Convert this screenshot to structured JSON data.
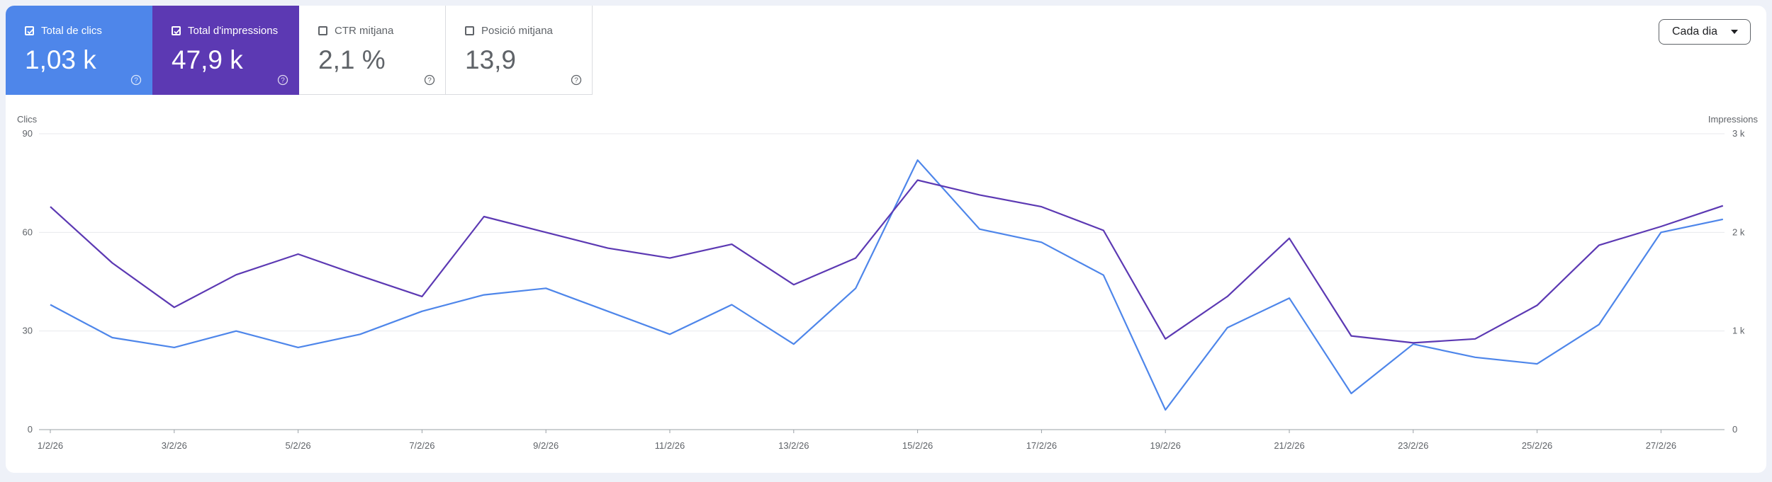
{
  "metrics": [
    {
      "label": "Total de clics",
      "value": "1,03 k",
      "checked": true,
      "color": "#4e86ea"
    },
    {
      "label": "Total d'impressions",
      "value": "47,9 k",
      "checked": true,
      "color": "#5c39b3"
    },
    {
      "label": "CTR mitjana",
      "value": "2,1 %",
      "checked": false
    },
    {
      "label": "Posició mitjana",
      "value": "13,9",
      "checked": false
    }
  ],
  "range_selector": {
    "label": "Cada dia",
    "icon": "caret-down-icon"
  },
  "chart_data": {
    "type": "line",
    "left_axis": {
      "title": "Clics",
      "ticks": [
        "0",
        "30",
        "60",
        "90"
      ],
      "min": 0,
      "max": 90
    },
    "right_axis": {
      "title": "Impressions",
      "ticks": [
        "0",
        "1 k",
        "2 k",
        "3 k"
      ],
      "min": 0,
      "max": 3000
    },
    "x_tick_labels": [
      "1/2/26",
      "3/2/26",
      "5/2/26",
      "7/2/26",
      "9/2/26",
      "11/2/26",
      "13/2/26",
      "15/2/26",
      "17/2/26",
      "19/2/26",
      "21/2/26",
      "23/2/26",
      "25/2/26",
      "27/2/26"
    ],
    "x": [
      "1/2/26",
      "2/2/26",
      "3/2/26",
      "4/2/26",
      "5/2/26",
      "6/2/26",
      "7/2/26",
      "8/2/26",
      "9/2/26",
      "10/2/26",
      "11/2/26",
      "12/2/26",
      "13/2/26",
      "14/2/26",
      "15/2/26",
      "16/2/26",
      "17/2/26",
      "18/2/26",
      "19/2/26",
      "20/2/26",
      "21/2/26",
      "22/2/26",
      "23/2/26",
      "24/2/26",
      "25/2/26",
      "26/2/26",
      "27/2/26",
      "28/2/26"
    ],
    "series": [
      {
        "axis": "left",
        "color": "#4e86ea",
        "values": [
          38,
          28,
          25,
          30,
          25,
          29,
          36,
          41,
          43,
          36,
          29,
          38,
          26,
          43,
          82,
          61,
          57,
          47,
          6,
          31,
          40,
          11,
          26,
          22,
          20,
          32,
          60,
          64
        ]
      },
      {
        "axis": "right",
        "color": "#5c39b3",
        "values": [
          2260,
          1690,
          1240,
          1570,
          1780,
          1560,
          1350,
          2160,
          2000,
          1840,
          1740,
          1880,
          1470,
          1740,
          2530,
          2380,
          2260,
          2020,
          920,
          1350,
          1940,
          950,
          880,
          920,
          1260,
          1870,
          2060,
          2270
        ]
      }
    ],
    "grid": true
  }
}
